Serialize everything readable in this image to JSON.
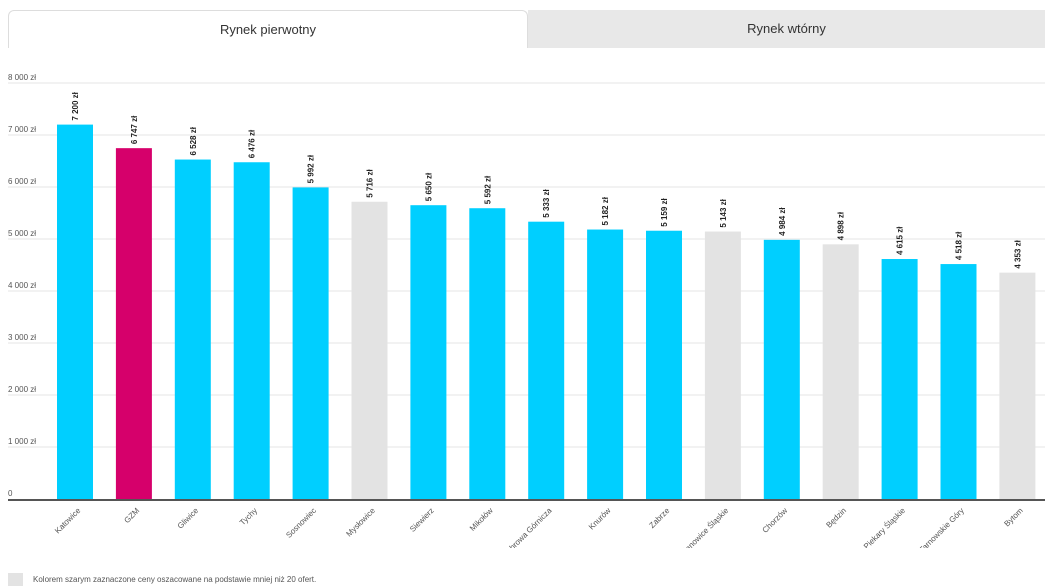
{
  "tabs": {
    "primary_label": "Rynek pierwotny",
    "secondary_label": "Rynek wtórny"
  },
  "colors": {
    "primary": "#00cfff",
    "highlight": "#d6006b",
    "estimated": "#e3e3e3"
  },
  "chart_data": {
    "type": "bar",
    "title": "",
    "xlabel": "",
    "ylabel": "",
    "ylim": [
      0,
      8000
    ],
    "yticks": [
      "0",
      "1 000 zł",
      "2 000 zł",
      "3 000 zł",
      "4 000 zł",
      "5 000 zł",
      "6 000 zł",
      "7 000 zł",
      "8 000 zł"
    ],
    "grid": true,
    "categories": [
      "Katowice",
      "GZM",
      "Gliwice",
      "Tychy",
      "Sosnowiec",
      "Mysłowice",
      "Siewierz",
      "Mikołów",
      "Dąbrowa Górnicza",
      "Knurów",
      "Zabrze",
      "Siemianowice Śląskie",
      "Chorzów",
      "Będzin",
      "Piekary Śląskie",
      "Tarnowskie Góry",
      "Bytom"
    ],
    "values": [
      7200,
      6747,
      6528,
      6476,
      5992,
      5716,
      5650,
      5592,
      5333,
      5182,
      5159,
      5143,
      4984,
      4898,
      4615,
      4518,
      4353
    ],
    "value_labels": [
      "7 200 zł",
      "6 747 zł",
      "6 528 zł",
      "6 476 zł",
      "5 992 zł",
      "5 716 zł",
      "5 650 zł",
      "5 592 zł",
      "5 333 zł",
      "5 182 zł",
      "5 159 zł",
      "5 143 zł",
      "4 984 zł",
      "4 898 zł",
      "4 615 zł",
      "4 518 zł",
      "4 353 zł"
    ],
    "bar_status": [
      "primary",
      "highlight",
      "primary",
      "primary",
      "primary",
      "estimated",
      "primary",
      "primary",
      "primary",
      "primary",
      "primary",
      "estimated",
      "primary",
      "estimated",
      "primary",
      "primary",
      "estimated"
    ]
  },
  "legend": {
    "text": "Kolorem szarym zaznaczone ceny oszacowane na podstawie mniej niż 20 ofert."
  }
}
